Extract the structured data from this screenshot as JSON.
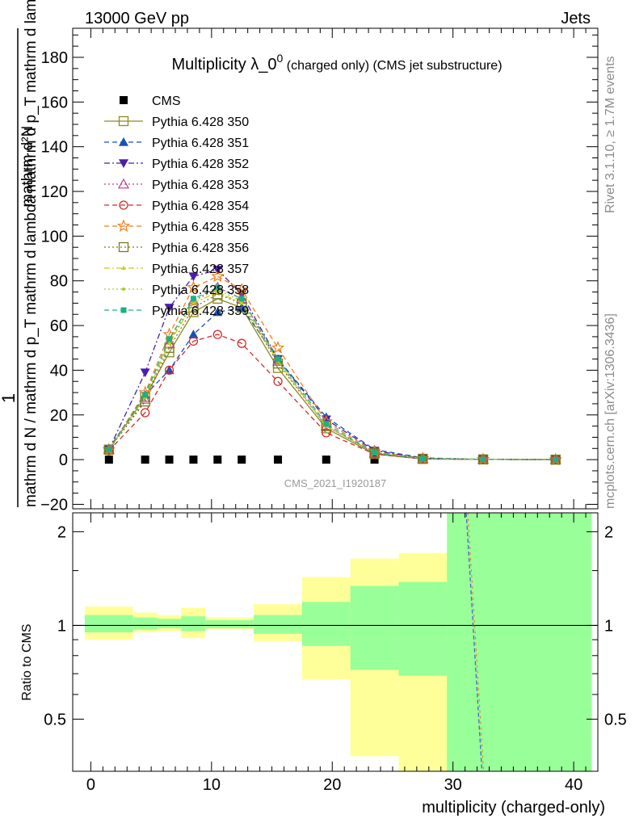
{
  "header": {
    "left": "13000 GeV pp",
    "right": "Jets"
  },
  "side_labels": {
    "rivet": "Rivet 3.1.10, ≥ 1.7M events",
    "mcplots": "mcplots.cern.ch [arXiv:1306.3436]"
  },
  "chart_data": [
    {
      "type": "line",
      "title": "Multiplicity λ_0⁰ (charged only) (CMS jet substructure)",
      "title_parts": {
        "main": "Multiplicity λ_0",
        "sup": "0",
        "tail": " (charged only) (CMS jet substructure)"
      },
      "watermark": "CMS_2021_I1920187",
      "ylabel": {
        "numerator": "1",
        "denominator": "mathrm d N / mathrm d p_T mathrm d lambda",
        "rhs_top": "mathrm d²N",
        "rhs_bottom": "mathrm d p_T mathrm d lambda"
      },
      "xlim": [
        -1.5,
        42
      ],
      "ylim": [
        -22,
        193
      ],
      "xticks": [
        0,
        10,
        20,
        30,
        40
      ],
      "yticks": [
        -20,
        0,
        20,
        40,
        60,
        80,
        100,
        120,
        140,
        160,
        180
      ],
      "x": [
        1.5,
        4.5,
        6.5,
        8.5,
        10.5,
        12.5,
        15.5,
        19.5,
        23.5,
        27.5,
        32.5,
        38.5
      ],
      "legend_position": "top-left",
      "series": [
        {
          "name": "CMS",
          "color": "#000000",
          "marker": "square-filled",
          "line": "none",
          "values": [
            0,
            0,
            0,
            0,
            0,
            0,
            0,
            0,
            0,
            null,
            null,
            0
          ]
        },
        {
          "name": "Pythia 6.428 350",
          "color": "#8b8b20",
          "marker": "square-open",
          "line": "solid",
          "values": [
            4.5,
            28,
            48,
            66,
            72,
            68,
            41,
            14,
            2.5,
            0.3,
            0.1,
            0
          ]
        },
        {
          "name": "Pythia 6.428 351",
          "color": "#1750b8",
          "marker": "triangle-up-filled",
          "line": "dashed",
          "values": [
            5,
            29,
            40,
            56,
            66,
            68,
            45,
            19,
            4.5,
            0.8,
            0.1,
            0
          ]
        },
        {
          "name": "Pythia 6.428 352",
          "color": "#4a1fa8",
          "marker": "triangle-down-filled",
          "line": "dashdot",
          "values": [
            4.5,
            39,
            68,
            82,
            85,
            74,
            45,
            18,
            4,
            0.5,
            0.1,
            0
          ]
        },
        {
          "name": "Pythia 6.428 353",
          "color": "#c03a8c",
          "marker": "triangle-up-open",
          "line": "dotted",
          "values": [
            4.5,
            27,
            52,
            71,
            77,
            72,
            44,
            15,
            3,
            0.4,
            0.1,
            0
          ]
        },
        {
          "name": "Pythia 6.428 354",
          "color": "#d42a2a",
          "marker": "circle-open",
          "line": "dashed",
          "values": [
            4,
            21,
            40,
            53,
            56,
            52,
            35,
            12,
            2.5,
            0.3,
            0.1,
            0
          ]
        },
        {
          "name": "Pythia 6.428 355",
          "color": "#ee7f1c",
          "marker": "star-open",
          "line": "dashed",
          "values": [
            4.5,
            30,
            56,
            77,
            82,
            76,
            50,
            17,
            3.5,
            0.5,
            0.1,
            0
          ]
        },
        {
          "name": "Pythia 6.428 356",
          "color": "#7a7a1f",
          "marker": "square-open",
          "line": "dotted",
          "values": [
            4.5,
            26,
            50,
            68,
            74,
            70,
            43,
            15,
            3,
            0.4,
            0.1,
            0
          ]
        },
        {
          "name": "Pythia 6.428 357",
          "color": "#cccc1f",
          "marker": "tri-small",
          "line": "dashdot",
          "values": [
            4.5,
            28,
            52,
            70,
            75,
            70,
            44,
            15,
            3,
            0.4,
            0.1,
            0
          ]
        },
        {
          "name": "Pythia 6.428 358",
          "color": "#a6cc2e",
          "marker": "dot-small",
          "line": "dotted",
          "values": [
            4.5,
            28,
            53,
            71,
            76,
            71,
            44,
            15,
            3,
            0.4,
            0.1,
            0
          ]
        },
        {
          "name": "Pythia 6.428 359",
          "color": "#20b080",
          "marker": "square-filled-small",
          "line": "dashed",
          "values": [
            4.5,
            29,
            54,
            72,
            77,
            72,
            45,
            16,
            3,
            0.4,
            0.1,
            0
          ]
        }
      ]
    },
    {
      "type": "area",
      "ylabel": "Ratio to CMS",
      "xlabel": "multiplicity (charged-only)",
      "xlim": [
        -1.5,
        42
      ],
      "ylim": [
        0.34,
        2.3
      ],
      "yticks": [
        0.5,
        1,
        2
      ],
      "log_y": true,
      "reference_line": 1,
      "bins": [
        {
          "x0": -0.5,
          "x1": 3.5,
          "yellow": [
            0.9,
            1.15
          ],
          "green": [
            0.95,
            1.08
          ]
        },
        {
          "x0": 3.5,
          "x1": 5.5,
          "yellow": [
            0.95,
            1.1
          ],
          "green": [
            0.97,
            1.06
          ]
        },
        {
          "x0": 5.5,
          "x1": 7.5,
          "yellow": [
            0.96,
            1.08
          ],
          "green": [
            0.98,
            1.05
          ]
        },
        {
          "x0": 7.5,
          "x1": 9.5,
          "yellow": [
            0.91,
            1.14
          ],
          "green": [
            0.96,
            1.07
          ]
        },
        {
          "x0": 9.5,
          "x1": 11.5,
          "yellow": [
            0.97,
            1.06
          ],
          "green": [
            0.98,
            1.04
          ]
        },
        {
          "x0": 11.5,
          "x1": 13.5,
          "yellow": [
            0.97,
            1.06
          ],
          "green": [
            0.98,
            1.04
          ]
        },
        {
          "x0": 13.5,
          "x1": 17.5,
          "yellow": [
            0.89,
            1.17
          ],
          "green": [
            0.94,
            1.08
          ]
        },
        {
          "x0": 17.5,
          "x1": 21.5,
          "yellow": [
            0.67,
            1.43
          ],
          "green": [
            0.86,
            1.19
          ]
        },
        {
          "x0": 21.5,
          "x1": 25.5,
          "yellow": [
            0.38,
            1.64
          ],
          "green": [
            0.72,
            1.34
          ]
        },
        {
          "x0": 25.5,
          "x1": 29.5,
          "yellow": [
            0.34,
            1.71
          ],
          "green": [
            0.69,
            1.38
          ]
        },
        {
          "x0": 29.5,
          "x1": 41.5,
          "yellow": [
            0.34,
            2.3
          ],
          "green": [
            0.34,
            2.3
          ]
        }
      ],
      "ratio_line": {
        "color": "#4466cc",
        "points": [
          [
            31.1,
            2.3
          ],
          [
            32.4,
            0.34
          ]
        ]
      }
    }
  ]
}
